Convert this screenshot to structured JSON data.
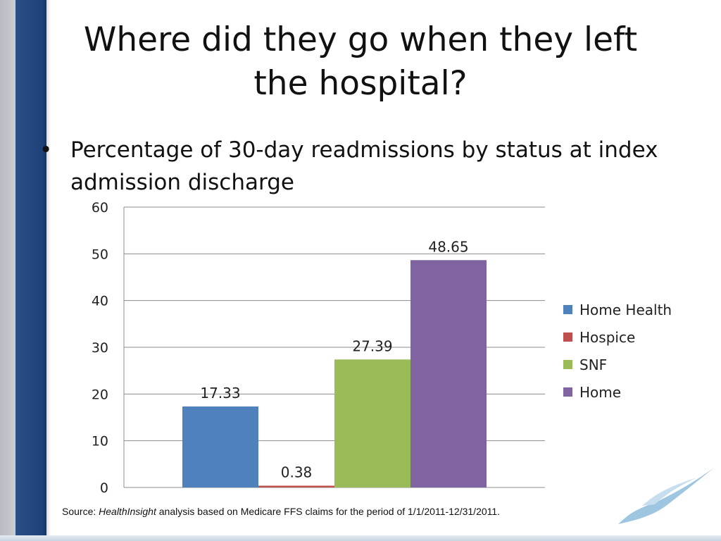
{
  "slide": {
    "title": "Where did they go when they left the hospital?",
    "bullet": "Percentage of 30-day readmissions by status at index admission discharge",
    "source": {
      "prefix": "Source: ",
      "org": "HealthInsight",
      "rest": " analysis based on Medicare FFS claims for the period of 1/1/2011-12/31/2011."
    }
  },
  "chart_data": {
    "type": "bar",
    "title": "",
    "xlabel": "",
    "ylabel": "",
    "ylim": [
      0,
      60
    ],
    "yticks": [
      0,
      10,
      20,
      30,
      40,
      50,
      60
    ],
    "grid": true,
    "legend_position": "right",
    "series": [
      {
        "name": "Home Health",
        "value": 17.33,
        "label": "17.33",
        "color": "#4f81bd"
      },
      {
        "name": "Hospice",
        "value": 0.38,
        "label": "0.38",
        "color": "#c0504d"
      },
      {
        "name": "SNF",
        "value": 27.39,
        "label": "27.39",
        "color": "#9bbb59"
      },
      {
        "name": "Home",
        "value": 48.65,
        "label": "48.65",
        "color": "#8064a2"
      }
    ]
  }
}
